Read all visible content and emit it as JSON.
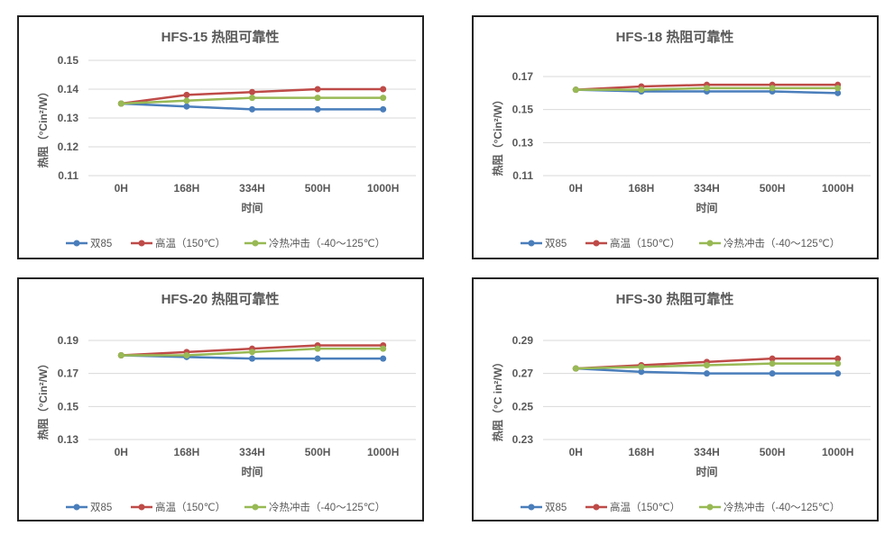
{
  "colors": {
    "双85": "#4a7ebb",
    "高温": "#be4b48",
    "冷热冲击": "#98b954",
    "grid": "#d9d9d9",
    "text": "#595959"
  },
  "chart_data": [
    {
      "type": "line",
      "title": "HFS-15 热阻可靠性",
      "xlabel": "时间",
      "ylabel": "热阻（°Cin²/W）",
      "categories": [
        "0H",
        "168H",
        "334H",
        "500H",
        "1000H"
      ],
      "ylim": [
        0.11,
        0.15
      ],
      "yticks": [
        "0.11",
        "0.12",
        "0.13",
        "0.14",
        "0.15"
      ],
      "grid": true,
      "legend": "bottom",
      "series": [
        {
          "name": "双85",
          "values": [
            0.135,
            0.134,
            0.133,
            0.133,
            0.133
          ]
        },
        {
          "name": "高温（150℃）",
          "values": [
            0.135,
            0.138,
            0.139,
            0.14,
            0.14
          ]
        },
        {
          "name": "冷热冲击（-40～125℃）",
          "values": [
            0.135,
            0.136,
            0.137,
            0.137,
            0.137
          ]
        }
      ]
    },
    {
      "type": "line",
      "title": "HFS-18 热阻可靠性",
      "xlabel": "时间",
      "ylabel": "热阻（°Cin²/W）",
      "categories": [
        "0H",
        "168H",
        "334H",
        "500H",
        "1000H"
      ],
      "ylim": [
        0.11,
        0.17
      ],
      "yticks": [
        "0.11",
        "0.13",
        "0.15",
        "0.17"
      ],
      "grid": true,
      "legend": "bottom",
      "series": [
        {
          "name": "双85",
          "values": [
            0.162,
            0.161,
            0.161,
            0.161,
            0.16
          ]
        },
        {
          "name": "高温（150℃）",
          "values": [
            0.162,
            0.164,
            0.165,
            0.165,
            0.165
          ]
        },
        {
          "name": "冷热冲击（-40～125℃）",
          "values": [
            0.162,
            0.162,
            0.163,
            0.163,
            0.163
          ]
        }
      ]
    },
    {
      "type": "line",
      "title": "HFS-20 热阻可靠性",
      "xlabel": "时间",
      "ylabel": "热阻（°Cin²/W）",
      "categories": [
        "0H",
        "168H",
        "334H",
        "500H",
        "1000H"
      ],
      "ylim": [
        0.13,
        0.19
      ],
      "yticks": [
        "0.13",
        "0.15",
        "0.17",
        "0.19"
      ],
      "grid": true,
      "legend": "bottom",
      "series": [
        {
          "name": "双85",
          "values": [
            0.181,
            0.18,
            0.179,
            0.179,
            0.179
          ]
        },
        {
          "name": "高温（150℃）",
          "values": [
            0.181,
            0.183,
            0.185,
            0.187,
            0.187
          ]
        },
        {
          "name": "冷热冲击（-40～125℃）",
          "values": [
            0.181,
            0.181,
            0.183,
            0.185,
            0.185
          ]
        }
      ]
    },
    {
      "type": "line",
      "title": "HFS-30 热阻可靠性",
      "xlabel": "时间",
      "ylabel": "热阻（°C in²/W）",
      "categories": [
        "0H",
        "168H",
        "334H",
        "500H",
        "1000H"
      ],
      "ylim": [
        0.23,
        0.29
      ],
      "yticks": [
        "0.23",
        "0.25",
        "0.27",
        "0.29"
      ],
      "grid": true,
      "legend": "bottom",
      "series": [
        {
          "name": "双85",
          "values": [
            0.273,
            0.271,
            0.27,
            0.27,
            0.27
          ]
        },
        {
          "name": "高温（150℃）",
          "values": [
            0.273,
            0.275,
            0.277,
            0.279,
            0.279
          ]
        },
        {
          "name": "冷热冲击（-40～125℃）",
          "values": [
            0.273,
            0.274,
            0.275,
            0.276,
            0.276
          ]
        }
      ]
    }
  ]
}
